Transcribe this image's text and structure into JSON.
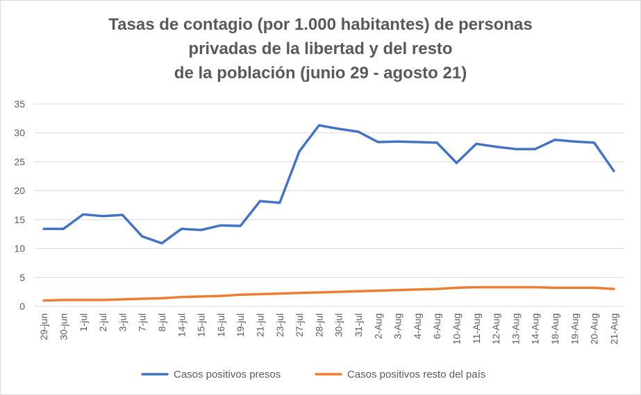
{
  "chart_data": {
    "type": "line",
    "title_lines": [
      "Tasas de contagio (por 1.000 habitantes) de personas",
      "privadas de la libertad y del resto",
      "de la población (junio 29 - agosto 21)"
    ],
    "xlabel": "",
    "ylabel": "",
    "ylim": [
      0,
      35
    ],
    "yticks": [
      0,
      5,
      10,
      15,
      20,
      25,
      30,
      35
    ],
    "grid": true,
    "legend_position": "bottom",
    "categories": [
      "29-jun",
      "30-jun",
      "1-jul",
      "2-jul",
      "3-jul",
      "7-jul",
      "8-jul",
      "14-jul",
      "15-jul",
      "16-jul",
      "19-jul",
      "21-jul",
      "23-jul",
      "27-jul",
      "28-jul",
      "30-jul",
      "31-jul",
      "2-Aug",
      "3-Aug",
      "4-Aug",
      "6-Aug",
      "10-Aug",
      "11-Aug",
      "12-Aug",
      "13-Aug",
      "14-Aug",
      "18-Aug",
      "19-Aug",
      "20-Aug",
      "21-Aug"
    ],
    "series": [
      {
        "name": "Casos positivos presos",
        "color": "#4472c4",
        "values": [
          13.4,
          13.4,
          15.9,
          15.6,
          15.8,
          12.1,
          10.9,
          13.4,
          13.2,
          14.0,
          13.9,
          18.2,
          17.9,
          26.8,
          31.3,
          30.7,
          30.2,
          28.4,
          28.5,
          28.4,
          28.3,
          24.8,
          28.1,
          27.6,
          27.2,
          27.2,
          28.8,
          28.5,
          28.3,
          23.4
        ]
      },
      {
        "name": "Casos positivos resto del país",
        "color": "#ed7d31",
        "values": [
          1.0,
          1.1,
          1.1,
          1.1,
          1.2,
          1.3,
          1.4,
          1.6,
          1.7,
          1.8,
          2.0,
          2.1,
          2.2,
          2.3,
          2.4,
          2.5,
          2.6,
          2.7,
          2.8,
          2.9,
          3.0,
          3.2,
          3.3,
          3.3,
          3.3,
          3.3,
          3.2,
          3.2,
          3.2,
          3.0
        ]
      }
    ]
  }
}
